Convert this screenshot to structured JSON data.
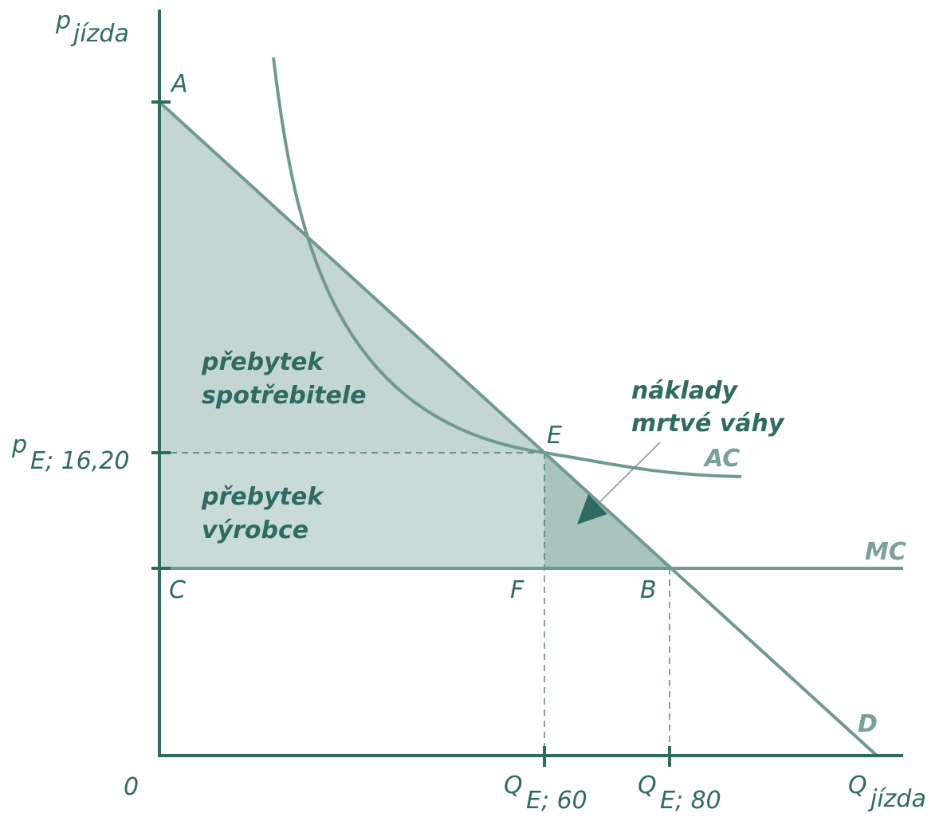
{
  "colors": {
    "axis": "#2e6b63",
    "curve": "#6f9993",
    "consumer_fill": "#c4d6d3",
    "producer_fill": "#c9dbd8",
    "deadweight_fill": "#a9c3bf",
    "text": "#2e6b63",
    "curve_label": "#7aa09a"
  },
  "axes": {
    "y_label_p": "p",
    "y_label_sub": "jízda",
    "x_label_q": "Q",
    "x_label_sub": "jízda",
    "origin": "0"
  },
  "points": {
    "A": "A",
    "C": "C",
    "E": "E",
    "F": "F",
    "B": "B"
  },
  "ticks": {
    "p_e_main": "p",
    "p_e_sub": "E; 16,20",
    "q60_main": "Q",
    "q60_sub": "E; 60",
    "q80_main": "Q",
    "q80_sub": "E; 80"
  },
  "curves": {
    "ac": "AC",
    "mc": "MC",
    "d": "D"
  },
  "regions": {
    "consumer_line1": "přebytek",
    "consumer_line2": "spotřebitele",
    "producer_line1": "přebytek",
    "producer_line2": "výrobce",
    "deadweight_line1": "náklady",
    "deadweight_line2": "mrtvé váhy"
  }
}
